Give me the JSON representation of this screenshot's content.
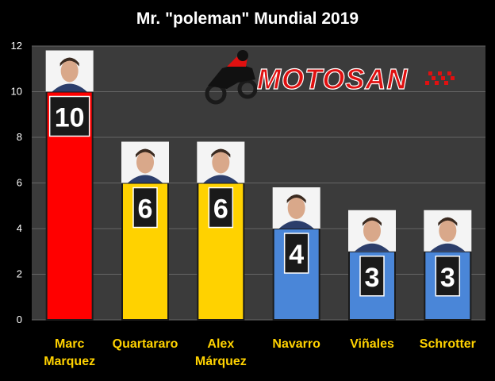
{
  "chart_data": {
    "type": "bar",
    "title": "Mr. \"poleman\" Mundial 2019",
    "xlabel": "",
    "ylabel": "",
    "ylim": [
      0,
      12
    ],
    "yticks": [
      0,
      2,
      4,
      6,
      8,
      10,
      12
    ],
    "grid": true,
    "legend": "none",
    "categories": [
      [
        "Marc",
        "Marquez"
      ],
      [
        "Quartararo"
      ],
      [
        "Alex",
        "Márquez"
      ],
      [
        "Navarro"
      ],
      [
        "Viñales"
      ],
      [
        "Schrotter"
      ]
    ],
    "values": [
      10,
      6,
      6,
      4,
      3,
      3
    ],
    "data_labels": [
      "10",
      "6",
      "6",
      "4",
      "3",
      "3"
    ],
    "bar_colors": [
      "#ff0000",
      "#ffd200",
      "#ffd200",
      "#4a86d8",
      "#4a86d8",
      "#4a86d8"
    ],
    "colors": {
      "background": "#000000",
      "plot_area": "#3b3b3b",
      "gridline": "#666666",
      "axis_text": "#ffffff",
      "category_text": "#ffd200",
      "title_text": "#ffffff",
      "value_box": "#1a1a1a",
      "value_text": "#ffffff"
    },
    "images": [
      "rider-photo",
      "rider-photo",
      "rider-photo",
      "rider-photo",
      "rider-photo",
      "rider-photo"
    ]
  },
  "logo": {
    "text": "MOTOSAN",
    "icon": "motorcycle-rider-icon",
    "color": "#e01010"
  }
}
